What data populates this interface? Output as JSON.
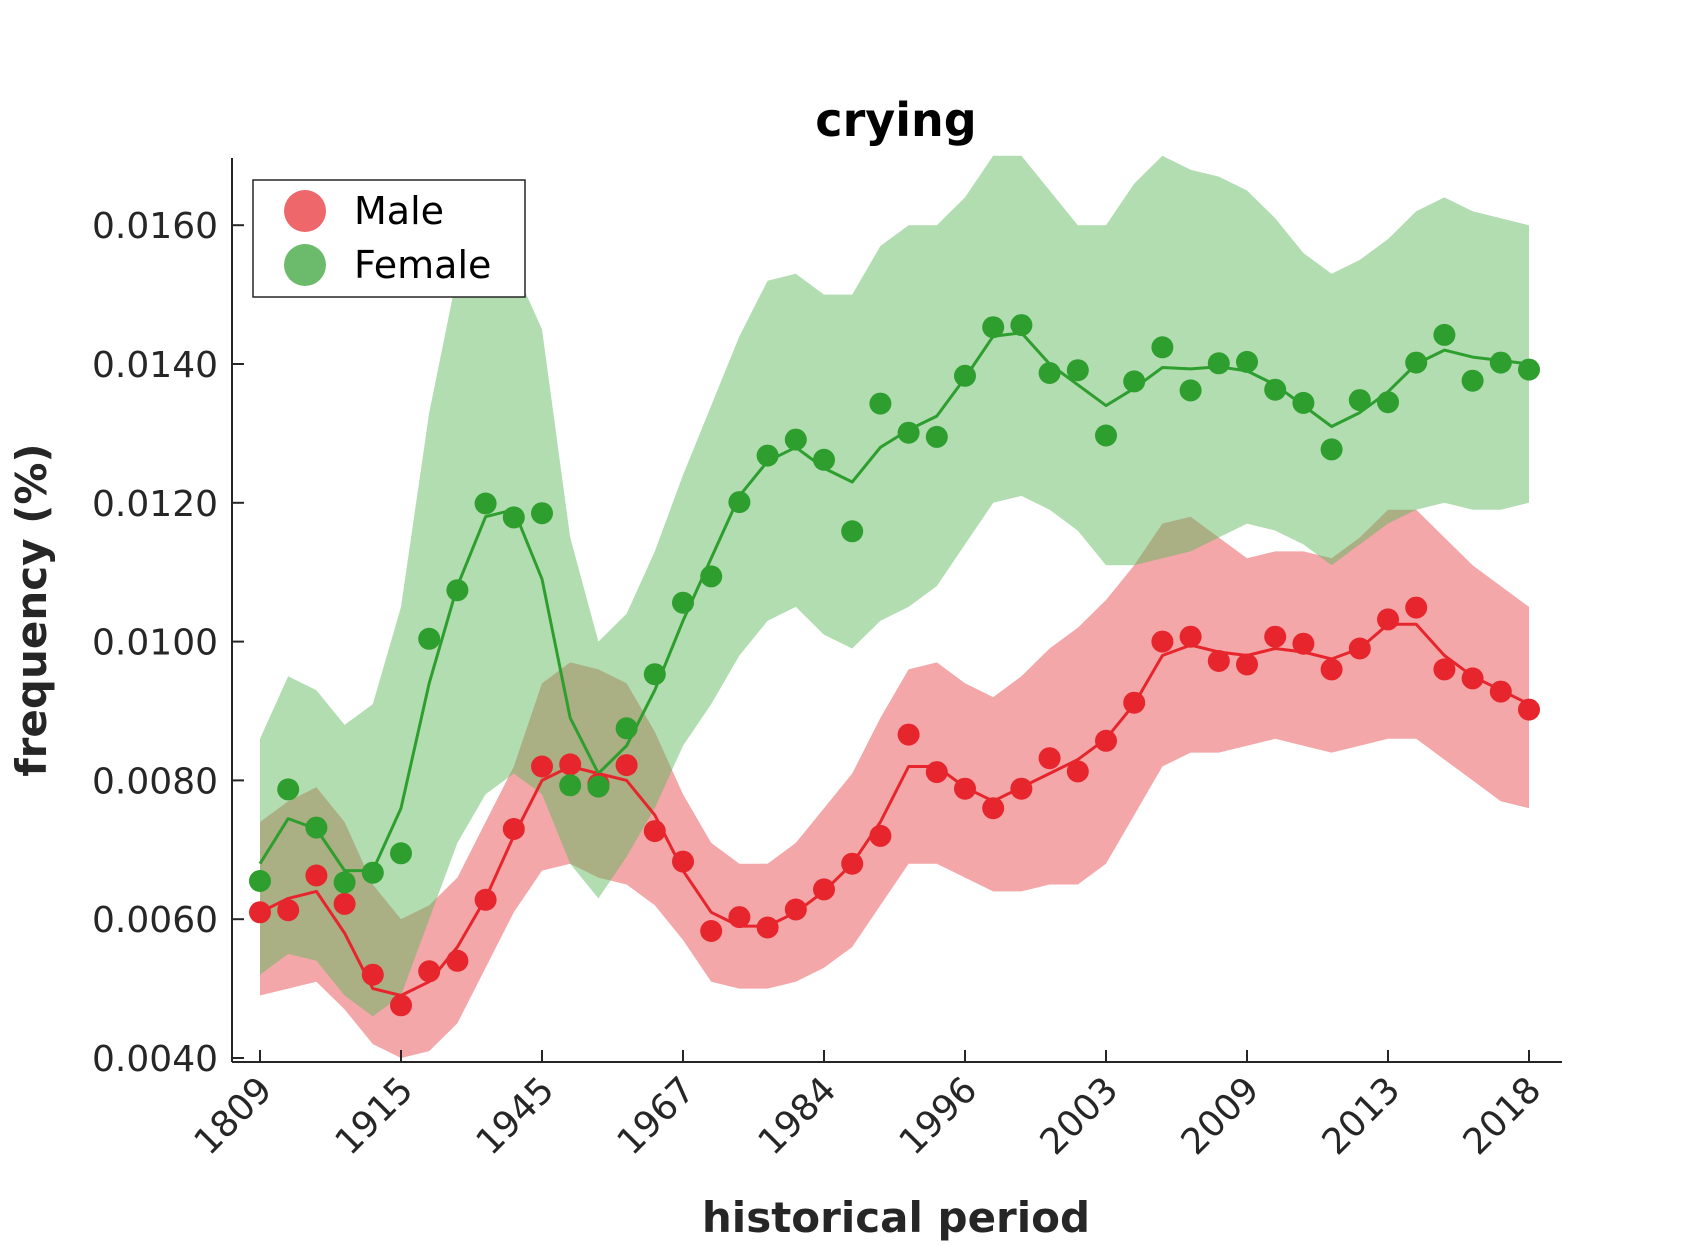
{
  "chart_data": {
    "type": "line",
    "title": "crying",
    "xlabel": "historical period",
    "ylabel": "frequency (%)",
    "x_tick_labels": [
      "1809",
      "1915",
      "1945",
      "1967",
      "1984",
      "1996",
      "2003",
      "2009",
      "2013",
      "2018"
    ],
    "y_ticks": [
      "0.0040",
      "0.0060",
      "0.0080",
      "0.0100",
      "0.0120",
      "0.0140",
      "0.0160"
    ],
    "ylim": [
      0.004,
      0.017
    ],
    "grid": false,
    "legend": "top-left",
    "series": [
      {
        "name": "Male",
        "color": "#e6262c",
        "points": [
          0.0061,
          0.00613,
          0.00663,
          0.00622,
          0.0052,
          0.00476,
          0.00525,
          0.0054,
          0.00628,
          0.0073,
          0.0082,
          0.00823,
          0.00795,
          0.00822,
          0.00727,
          0.00683,
          0.00583,
          0.00603,
          0.00588,
          0.00614,
          0.00643,
          0.0068,
          0.0072,
          0.00866,
          0.00812,
          0.00788,
          0.0076,
          0.00788,
          0.00832,
          0.00813,
          0.00857,
          0.00912,
          0.01,
          0.01007,
          0.00972,
          0.00967,
          0.01007,
          0.00997,
          0.0096,
          0.0099,
          0.01032,
          0.01049,
          0.0096,
          0.00947,
          0.00928,
          0.00902
        ],
        "line": [
          0.0061,
          0.0063,
          0.0064,
          0.0058,
          0.005,
          0.0049,
          0.0051,
          0.0056,
          0.0063,
          0.0072,
          0.008,
          0.0082,
          0.0081,
          0.008,
          0.0075,
          0.0067,
          0.0061,
          0.0059,
          0.0059,
          0.0061,
          0.0064,
          0.0068,
          0.0074,
          0.0082,
          0.0082,
          0.0079,
          0.0077,
          0.0079,
          0.0081,
          0.0083,
          0.0086,
          0.0091,
          0.0098,
          0.00995,
          0.00985,
          0.0098,
          0.0099,
          0.00985,
          0.00975,
          0.0099,
          0.01025,
          0.01025,
          0.0098,
          0.0095,
          0.0093,
          0.0091
        ],
        "band_upper": [
          0.0074,
          0.0077,
          0.0079,
          0.0074,
          0.0065,
          0.006,
          0.0062,
          0.0066,
          0.0074,
          0.0082,
          0.0094,
          0.0097,
          0.0096,
          0.0094,
          0.0087,
          0.0078,
          0.0071,
          0.0068,
          0.0068,
          0.0071,
          0.0076,
          0.0081,
          0.0089,
          0.0096,
          0.0097,
          0.0094,
          0.0092,
          0.0095,
          0.0099,
          0.0102,
          0.0106,
          0.0111,
          0.0117,
          0.0118,
          0.0115,
          0.0112,
          0.0113,
          0.0113,
          0.0112,
          0.0115,
          0.0119,
          0.0119,
          0.0115,
          0.0111,
          0.0108,
          0.0105
        ],
        "band_lower": [
          0.0049,
          0.005,
          0.0051,
          0.0047,
          0.0042,
          0.004,
          0.0041,
          0.0045,
          0.0053,
          0.0061,
          0.0067,
          0.0068,
          0.0066,
          0.0065,
          0.0062,
          0.0057,
          0.0051,
          0.005,
          0.005,
          0.0051,
          0.0053,
          0.0056,
          0.0062,
          0.0068,
          0.0068,
          0.0066,
          0.0064,
          0.0064,
          0.0065,
          0.0065,
          0.0068,
          0.0075,
          0.0082,
          0.0084,
          0.0084,
          0.0085,
          0.0086,
          0.0085,
          0.0084,
          0.0085,
          0.0086,
          0.0086,
          0.0083,
          0.008,
          0.0077,
          0.0076
        ]
      },
      {
        "name": "Female",
        "color": "#2e9e2e",
        "points": [
          0.00655,
          0.00787,
          0.00732,
          0.00653,
          0.00667,
          0.00695,
          0.01004,
          0.01074,
          0.01199,
          0.01179,
          0.01185,
          0.00793,
          0.00791,
          0.00875,
          0.00953,
          0.01056,
          0.01094,
          0.01201,
          0.01268,
          0.01291,
          0.01262,
          0.01159,
          0.01343,
          0.01301,
          0.01295,
          0.01383,
          0.01453,
          0.01456,
          0.01387,
          0.01391,
          0.01297,
          0.01375,
          0.01424,
          0.01362,
          0.01401,
          0.01403,
          0.01363,
          0.01344,
          0.01277,
          0.01348,
          0.01345,
          0.01402,
          0.01442,
          0.01376,
          0.01402,
          0.01392
        ],
        "line": [
          0.0068,
          0.00745,
          0.0073,
          0.0067,
          0.0067,
          0.0076,
          0.0094,
          0.0108,
          0.0118,
          0.0119,
          0.0109,
          0.0089,
          0.0081,
          0.0085,
          0.0093,
          0.0103,
          0.0112,
          0.0121,
          0.0126,
          0.0128,
          0.0125,
          0.0123,
          0.0128,
          0.01305,
          0.01325,
          0.0138,
          0.0144,
          0.01445,
          0.014,
          0.0137,
          0.0134,
          0.01365,
          0.01395,
          0.01393,
          0.01396,
          0.0139,
          0.0137,
          0.0134,
          0.0131,
          0.0133,
          0.0136,
          0.014,
          0.0142,
          0.0141,
          0.01405,
          0.014
        ],
        "band_upper": [
          0.0086,
          0.0095,
          0.0093,
          0.0088,
          0.0091,
          0.0105,
          0.0133,
          0.0153,
          0.0156,
          0.0154,
          0.0145,
          0.0115,
          0.01,
          0.0104,
          0.0113,
          0.0124,
          0.0134,
          0.0144,
          0.0152,
          0.0153,
          0.015,
          0.015,
          0.0157,
          0.016,
          0.016,
          0.0164,
          0.017,
          0.017,
          0.0165,
          0.016,
          0.016,
          0.0166,
          0.017,
          0.0168,
          0.0167,
          0.0165,
          0.0161,
          0.0156,
          0.0153,
          0.0155,
          0.0158,
          0.0162,
          0.0164,
          0.0162,
          0.0161,
          0.016
        ],
        "band_lower": [
          0.0052,
          0.0055,
          0.0054,
          0.0049,
          0.0046,
          0.0049,
          0.006,
          0.0071,
          0.0078,
          0.0081,
          0.0078,
          0.0068,
          0.0063,
          0.0069,
          0.0076,
          0.0085,
          0.0091,
          0.0098,
          0.0103,
          0.0105,
          0.0101,
          0.0099,
          0.0103,
          0.0105,
          0.0108,
          0.0114,
          0.012,
          0.0121,
          0.0119,
          0.0116,
          0.0111,
          0.0111,
          0.0112,
          0.0113,
          0.0115,
          0.0117,
          0.0116,
          0.0114,
          0.0111,
          0.0114,
          0.0117,
          0.0119,
          0.012,
          0.0119,
          0.0119,
          0.012
        ]
      }
    ]
  }
}
